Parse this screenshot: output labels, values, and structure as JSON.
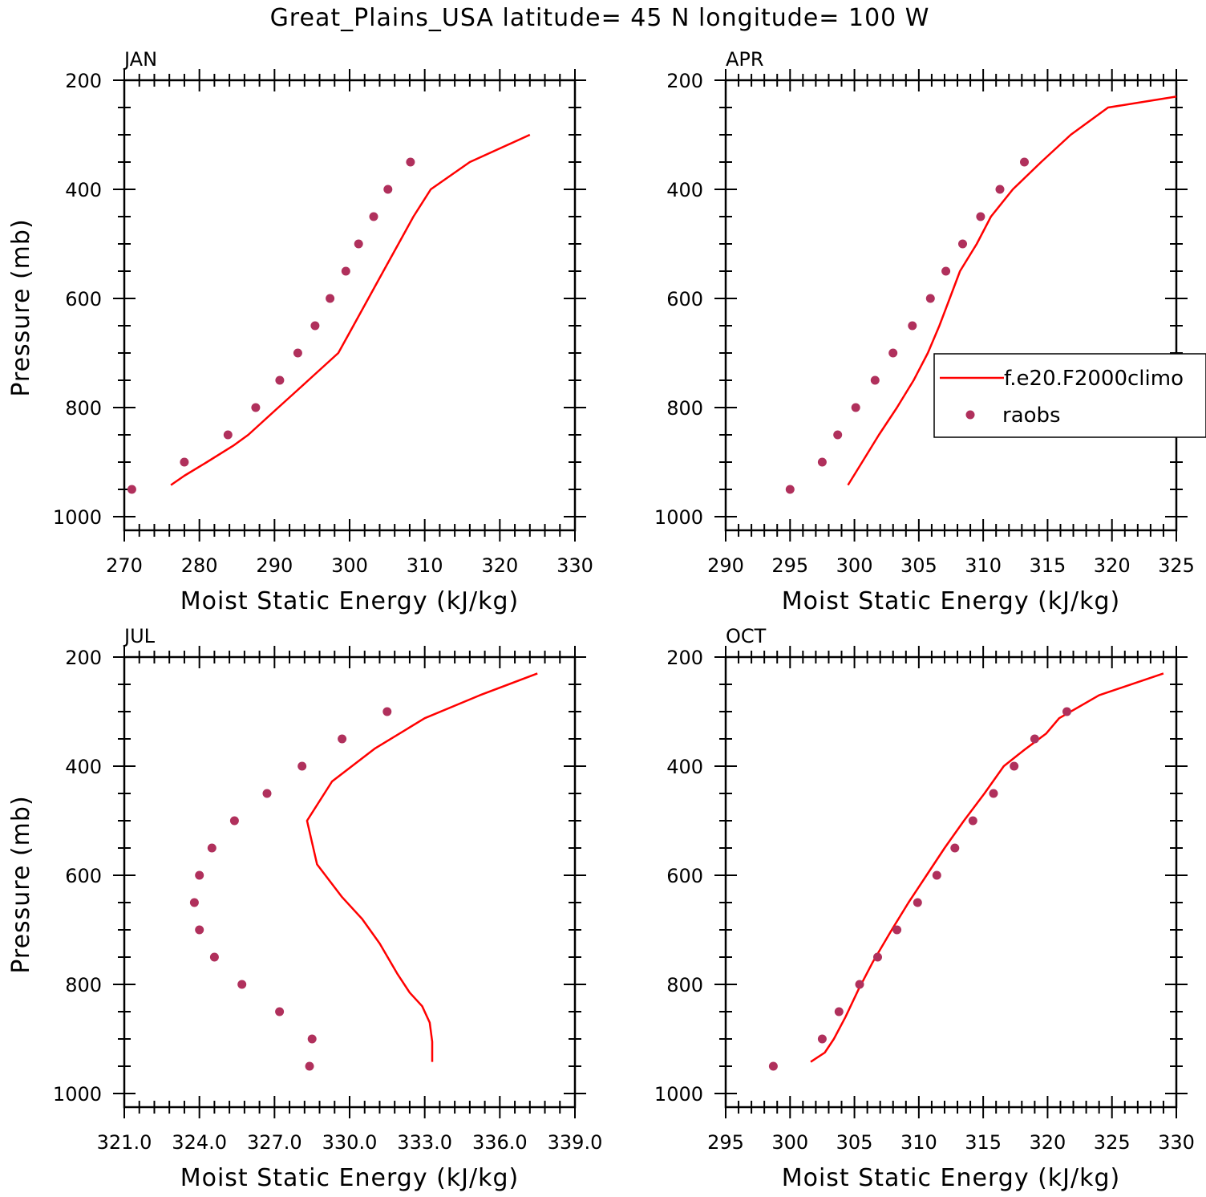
{
  "figure_title": "Great_Plains_USA  latitude= 45 N longitude= 100 W",
  "legend": {
    "model_label": "f.e20.F2000climo",
    "obs_label": "raobs"
  },
  "colors": {
    "model_line": "#ff0000",
    "obs_marker": "#b0305c",
    "axes": "#000000"
  },
  "chart_data": [
    {
      "type": "line",
      "panel": "JAN",
      "xlabel": "Moist Static Energy (kJ/kg)",
      "ylabel": "Pressure (mb)",
      "xlim": [
        270,
        330
      ],
      "ylim": [
        1025,
        200
      ],
      "x_ticks": [
        "270",
        "280",
        "290",
        "300",
        "310",
        "320",
        "330"
      ],
      "y_ticks": [
        "200",
        "400",
        "600",
        "800",
        "1000"
      ],
      "series": [
        {
          "name": "f.e20.F2000climo",
          "style": "line",
          "x": [
            276.2,
            278.0,
            281.0,
            284.5,
            286.5,
            288.5,
            290.5,
            292.5,
            294.5,
            296.5,
            298.5,
            300.5,
            302.5,
            304.5,
            306.5,
            308.5,
            310.8,
            316.0,
            324.0
          ],
          "y": [
            942,
            925,
            900,
            870,
            850,
            825,
            800,
            775,
            750,
            725,
            700,
            650,
            600,
            550,
            500,
            450,
            400,
            350,
            300
          ]
        },
        {
          "name": "raobs",
          "style": "scatter",
          "x": [
            271.0,
            278.0,
            283.8,
            287.5,
            290.7,
            293.1,
            295.4,
            297.4,
            299.5,
            301.2,
            303.2,
            305.1,
            308.1
          ],
          "y": [
            950,
            900,
            850,
            800,
            750,
            700,
            650,
            600,
            550,
            500,
            450,
            400,
            350
          ]
        }
      ]
    },
    {
      "type": "line",
      "panel": "APR",
      "xlabel": "Moist Static Energy (kJ/kg)",
      "ylabel": "",
      "xlim": [
        290,
        325
      ],
      "ylim": [
        1025,
        200
      ],
      "x_ticks": [
        "290",
        "295",
        "300",
        "305",
        "310",
        "315",
        "320",
        "325"
      ],
      "y_ticks": [
        "200",
        "400",
        "600",
        "800",
        "1000"
      ],
      "series": [
        {
          "name": "f.e20.F2000climo",
          "style": "line",
          "x": [
            299.5,
            300.6,
            301.9,
            303.3,
            304.6,
            305.7,
            306.6,
            307.4,
            308.2,
            309.5,
            310.6,
            312.3,
            314.5,
            316.8,
            319.7,
            325.0
          ],
          "y": [
            942,
            900,
            850,
            800,
            750,
            700,
            650,
            600,
            550,
            500,
            450,
            400,
            350,
            300,
            250,
            230
          ]
        },
        {
          "name": "raobs",
          "style": "scatter",
          "x": [
            295.0,
            297.5,
            298.7,
            300.1,
            301.6,
            303.0,
            304.5,
            305.9,
            307.1,
            308.4,
            309.8,
            311.3,
            313.2
          ],
          "y": [
            950,
            900,
            850,
            800,
            750,
            700,
            650,
            600,
            550,
            500,
            450,
            400,
            350
          ]
        }
      ]
    },
    {
      "type": "line",
      "panel": "JUL",
      "xlabel": "Moist Static Energy (kJ/kg)",
      "ylabel": "Pressure (mb)",
      "xlim": [
        321.0,
        339.0
      ],
      "ylim": [
        1025,
        200
      ],
      "x_ticks": [
        "321.0",
        "324.0",
        "327.0",
        "330.0",
        "333.0",
        "336.0",
        "339.0"
      ],
      "y_ticks": [
        "200",
        "400",
        "600",
        "800",
        "1000"
      ],
      "series": [
        {
          "name": "f.e20.F2000climo",
          "style": "line",
          "x": [
            333.3,
            333.3,
            333.2,
            332.9,
            332.4,
            331.9,
            331.2,
            330.5,
            329.7,
            328.7,
            328.3,
            329.3,
            331.0,
            333.0,
            335.2,
            337.5
          ],
          "y": [
            942,
            905,
            870,
            840,
            815,
            780,
            725,
            680,
            640,
            580,
            500,
            428,
            368,
            312,
            270,
            230
          ]
        },
        {
          "name": "raobs",
          "style": "scatter",
          "x": [
            328.4,
            328.5,
            327.2,
            325.7,
            324.6,
            324.0,
            323.8,
            324.0,
            324.5,
            325.4,
            326.7,
            328.1,
            329.7,
            331.5
          ],
          "y": [
            950,
            900,
            850,
            800,
            750,
            700,
            650,
            600,
            550,
            500,
            450,
            400,
            350,
            300
          ]
        }
      ]
    },
    {
      "type": "line",
      "panel": "OCT",
      "xlabel": "Moist Static Energy (kJ/kg)",
      "ylabel": "",
      "xlim": [
        295,
        330
      ],
      "ylim": [
        1025,
        200
      ],
      "x_ticks": [
        "295",
        "300",
        "305",
        "310",
        "315",
        "320",
        "325",
        "330"
      ],
      "y_ticks": [
        "200",
        "400",
        "600",
        "800",
        "1000"
      ],
      "series": [
        {
          "name": "f.e20.F2000climo",
          "style": "line",
          "x": [
            301.6,
            302.7,
            303.4,
            304.3,
            305.3,
            306.4,
            307.9,
            309.2,
            310.6,
            312.0,
            313.5,
            315.1,
            316.6,
            318.2,
            319.9,
            320.9,
            324.0,
            329.0
          ],
          "y": [
            942,
            925,
            900,
            860,
            810,
            760,
            700,
            650,
            600,
            550,
            500,
            450,
            400,
            370,
            340,
            312,
            270,
            230
          ]
        },
        {
          "name": "raobs",
          "style": "scatter",
          "x": [
            298.7,
            302.5,
            303.8,
            305.4,
            306.8,
            308.3,
            309.9,
            311.4,
            312.8,
            314.2,
            315.8,
            317.4,
            319.0,
            321.5
          ],
          "y": [
            950,
            900,
            850,
            800,
            750,
            700,
            650,
            600,
            550,
            500,
            450,
            400,
            350,
            300
          ]
        }
      ]
    }
  ]
}
